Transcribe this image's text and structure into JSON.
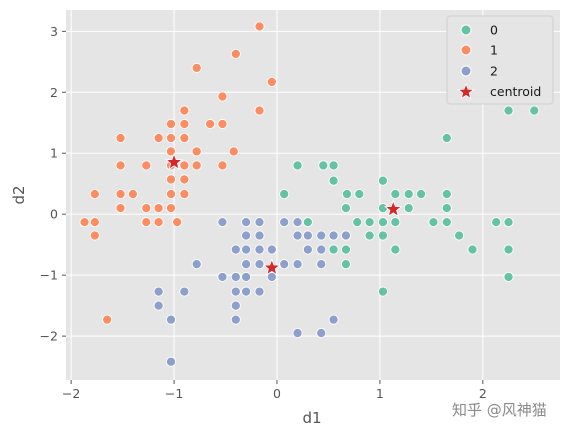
{
  "chart_data": {
    "type": "scatter",
    "xlabel": "d1",
    "ylabel": "d2",
    "xlim": [
      -2.05,
      2.75
    ],
    "ylim": [
      -2.72,
      3.35
    ],
    "xticks": [
      -2,
      -1,
      0,
      1,
      2
    ],
    "yticks": [
      -2,
      -1,
      0,
      1,
      2,
      3
    ],
    "xtick_labels": [
      "−2",
      "−1",
      "0",
      "1",
      "2"
    ],
    "ytick_labels": [
      "−2",
      "−1",
      "0",
      "1",
      "2",
      "3"
    ],
    "grid": true,
    "legend_position": "top-right",
    "series": [
      {
        "name": "0",
        "color": "#66c2a5",
        "points": [
          [
            2.25,
            1.7
          ],
          [
            2.5,
            1.7
          ],
          [
            1.65,
            1.25
          ],
          [
            0.2,
            0.8
          ],
          [
            0.45,
            0.8
          ],
          [
            0.55,
            0.8
          ],
          [
            0.55,
            0.55
          ],
          [
            0.07,
            0.33
          ],
          [
            0.68,
            0.33
          ],
          [
            0.8,
            0.33
          ],
          [
            1.03,
            0.55
          ],
          [
            1.15,
            0.33
          ],
          [
            1.28,
            0.33
          ],
          [
            1.4,
            0.33
          ],
          [
            1.65,
            0.33
          ],
          [
            0.67,
            0.1
          ],
          [
            1.03,
            0.1
          ],
          [
            1.28,
            0.1
          ],
          [
            1.65,
            0.1
          ],
          [
            0.3,
            -0.13
          ],
          [
            0.78,
            -0.13
          ],
          [
            0.9,
            -0.13
          ],
          [
            1.03,
            -0.13
          ],
          [
            1.15,
            -0.13
          ],
          [
            1.52,
            -0.13
          ],
          [
            1.65,
            -0.13
          ],
          [
            2.13,
            -0.13
          ],
          [
            2.25,
            -0.13
          ],
          [
            0.55,
            -0.35
          ],
          [
            0.67,
            -0.35
          ],
          [
            0.9,
            -0.35
          ],
          [
            1.03,
            -0.35
          ],
          [
            1.77,
            -0.35
          ],
          [
            0.55,
            -0.58
          ],
          [
            0.67,
            -0.58
          ],
          [
            1.15,
            -0.58
          ],
          [
            1.9,
            -0.58
          ],
          [
            2.25,
            -0.58
          ],
          [
            0.67,
            -0.82
          ],
          [
            2.25,
            -1.03
          ],
          [
            1.03,
            -1.27
          ]
        ]
      },
      {
        "name": "1",
        "color": "#fc8d62",
        "points": [
          [
            -0.17,
            3.08
          ],
          [
            -0.4,
            2.63
          ],
          [
            -0.05,
            2.17
          ],
          [
            -0.78,
            2.4
          ],
          [
            -0.53,
            1.93
          ],
          [
            -0.17,
            1.7
          ],
          [
            -0.9,
            1.7
          ],
          [
            -0.9,
            1.48
          ],
          [
            -1.03,
            1.48
          ],
          [
            -0.65,
            1.48
          ],
          [
            -0.53,
            1.48
          ],
          [
            -1.52,
            1.25
          ],
          [
            -1.15,
            1.25
          ],
          [
            -1.03,
            1.25
          ],
          [
            -0.9,
            1.25
          ],
          [
            -1.52,
            0.8
          ],
          [
            -1.27,
            0.8
          ],
          [
            -1.03,
            1.03
          ],
          [
            -0.78,
            1.03
          ],
          [
            -0.42,
            1.03
          ],
          [
            -1.03,
            0.8
          ],
          [
            -0.9,
            0.8
          ],
          [
            -0.78,
            0.8
          ],
          [
            -0.53,
            0.8
          ],
          [
            -1.03,
            0.57
          ],
          [
            -0.9,
            0.57
          ],
          [
            -1.77,
            0.33
          ],
          [
            -1.52,
            0.33
          ],
          [
            -1.4,
            0.33
          ],
          [
            -1.03,
            0.33
          ],
          [
            -0.9,
            0.33
          ],
          [
            -1.52,
            0.1
          ],
          [
            -1.27,
            0.1
          ],
          [
            -1.15,
            0.1
          ],
          [
            -1.03,
            0.1
          ],
          [
            -1.87,
            -0.13
          ],
          [
            -1.77,
            -0.13
          ],
          [
            -1.27,
            -0.13
          ],
          [
            -1.15,
            -0.13
          ],
          [
            -0.97,
            -0.13
          ],
          [
            -1.77,
            -0.35
          ],
          [
            -1.65,
            -1.73
          ]
        ]
      },
      {
        "name": "2",
        "color": "#8da0cb",
        "points": [
          [
            -0.53,
            -0.13
          ],
          [
            -0.3,
            -0.13
          ],
          [
            -0.17,
            -0.13
          ],
          [
            0.07,
            -0.13
          ],
          [
            0.2,
            -0.13
          ],
          [
            -0.3,
            -0.35
          ],
          [
            -0.17,
            -0.35
          ],
          [
            0.2,
            -0.35
          ],
          [
            0.3,
            -0.35
          ],
          [
            0.43,
            -0.35
          ],
          [
            0.55,
            -0.35
          ],
          [
            0.67,
            -0.35
          ],
          [
            -0.4,
            -0.58
          ],
          [
            -0.3,
            -0.58
          ],
          [
            -0.17,
            -0.58
          ],
          [
            -0.05,
            -0.58
          ],
          [
            0.3,
            -0.58
          ],
          [
            0.43,
            -0.58
          ],
          [
            -0.78,
            -0.82
          ],
          [
            -0.3,
            -0.82
          ],
          [
            -0.17,
            -0.82
          ],
          [
            0.07,
            -0.82
          ],
          [
            0.2,
            -0.82
          ],
          [
            0.43,
            -0.82
          ],
          [
            -0.4,
            -1.03
          ],
          [
            -0.3,
            -1.03
          ],
          [
            -0.53,
            -1.03
          ],
          [
            -0.05,
            -1.03
          ],
          [
            -0.17,
            -1.27
          ],
          [
            -0.3,
            -1.27
          ],
          [
            -0.4,
            -1.27
          ],
          [
            -1.15,
            -1.27
          ],
          [
            -0.9,
            -1.27
          ],
          [
            -0.4,
            -1.5
          ],
          [
            -1.15,
            -1.5
          ],
          [
            -0.4,
            -1.73
          ],
          [
            -1.03,
            -1.73
          ],
          [
            0.55,
            -1.73
          ],
          [
            0.2,
            -1.95
          ],
          [
            0.43,
            -1.95
          ],
          [
            -1.03,
            -2.42
          ]
        ]
      }
    ],
    "centroids": {
      "name": "centroid",
      "color": "#d62728",
      "marker": "star",
      "points": [
        [
          -1.0,
          0.85
        ],
        [
          1.13,
          0.08
        ],
        [
          -0.05,
          -0.88
        ]
      ]
    }
  },
  "watermark": "知乎 @风神猫"
}
